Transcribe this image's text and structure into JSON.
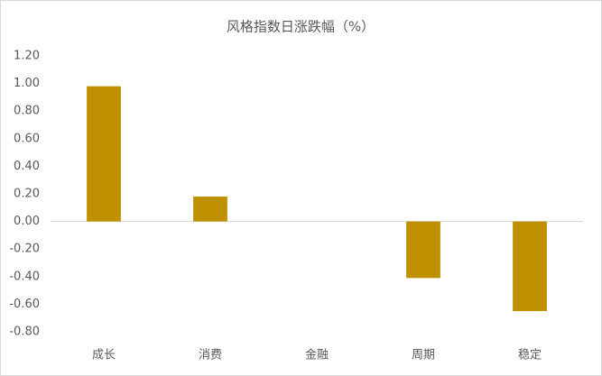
{
  "chart_data": {
    "type": "bar",
    "title": "风格指数日涨跌幅（%）",
    "categories": [
      "成长",
      "消费",
      "金融",
      "周期",
      "稳定"
    ],
    "values": [
      0.98,
      0.18,
      0,
      -0.41,
      -0.65
    ],
    "color": "#bf9000",
    "ylim": [
      -0.8,
      1.2
    ],
    "yticks": [
      {
        "value": -0.8,
        "label": "-0.80"
      },
      {
        "value": -0.6,
        "label": "-0.60"
      },
      {
        "value": -0.4,
        "label": "-0.40"
      },
      {
        "value": -0.2,
        "label": "-0.20"
      },
      {
        "value": 0,
        "label": "0.00"
      },
      {
        "value": 0.2,
        "label": "0.20"
      },
      {
        "value": 0.4,
        "label": "0.40"
      },
      {
        "value": 0.6,
        "label": "0.60"
      },
      {
        "value": 0.8,
        "label": "0.80"
      },
      {
        "value": 1.0,
        "label": "1.00"
      },
      {
        "value": 1.2,
        "label": "1.20"
      }
    ],
    "grid": false
  }
}
